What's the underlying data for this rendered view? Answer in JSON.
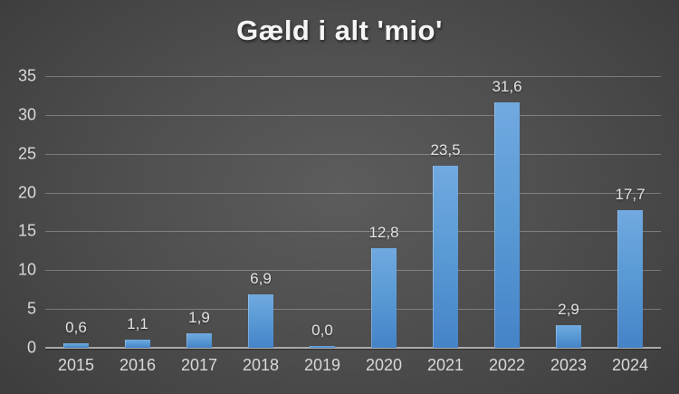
{
  "chart_data": {
    "type": "bar",
    "title": "Gæld i alt 'mio'",
    "categories": [
      "2015",
      "2016",
      "2017",
      "2018",
      "2019",
      "2020",
      "2021",
      "2022",
      "2023",
      "2024"
    ],
    "values": [
      0.6,
      1.1,
      1.9,
      6.9,
      0.0,
      12.8,
      23.5,
      31.6,
      2.9,
      17.7
    ],
    "value_labels": [
      "0,6",
      "1,1",
      "1,9",
      "6,9",
      "0,0",
      "12,8",
      "23,5",
      "31,6",
      "2,9",
      "17,7"
    ],
    "xlabel": "",
    "ylabel": "",
    "ylim": [
      0,
      35
    ],
    "y_ticks": [
      0,
      5,
      10,
      15,
      20,
      25,
      30,
      35
    ],
    "grid": true,
    "legend": "none",
    "decimal_separator": ",",
    "colors": {
      "bar_top": "#71A9E0",
      "bar_main": "#5B9BD5",
      "bar_bottom": "#4583C8",
      "background_center": "#5C5C5C",
      "background_edge": "#232323",
      "gridline": "rgba(255,255,255,0.28)",
      "axis_line": "#AAAAAA",
      "title_text": "#F5F5F5",
      "tick_text": "#D9D9D9",
      "data_label_text": "#E3E3E3"
    }
  }
}
